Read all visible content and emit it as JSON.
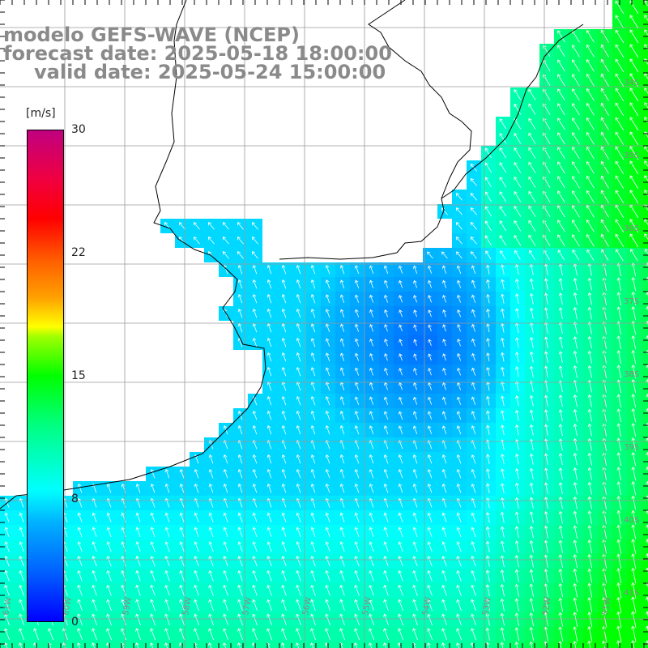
{
  "title": {
    "line1": "modelo GEFS-WAVE (NCEP)",
    "line2": "forecast date: 2025-05-18 18:00:00",
    "line3": "valid date: 2025-05-24 15:00:00"
  },
  "colorbar": {
    "unit": "[m/s]",
    "min": 0,
    "max": 30,
    "labels": [
      "30",
      "22",
      "15",
      "8",
      "0"
    ],
    "label_values": [
      30,
      22,
      15,
      8,
      0
    ]
  },
  "lon_labels": [
    "61W",
    "60W",
    "59W",
    "58W",
    "57W",
    "56W",
    "55W",
    "54W",
    "53W",
    "52W",
    "51W"
  ],
  "lat_labels": [
    "34S",
    "35S",
    "36S",
    "37S",
    "38S",
    "39S",
    "40S",
    "41S"
  ],
  "colors": {
    "land": "#ffffff",
    "coast": "#000000",
    "grid": "#9a9a9a",
    "arrow": "#ffffff",
    "title_text": "#8a8a8a"
  }
}
